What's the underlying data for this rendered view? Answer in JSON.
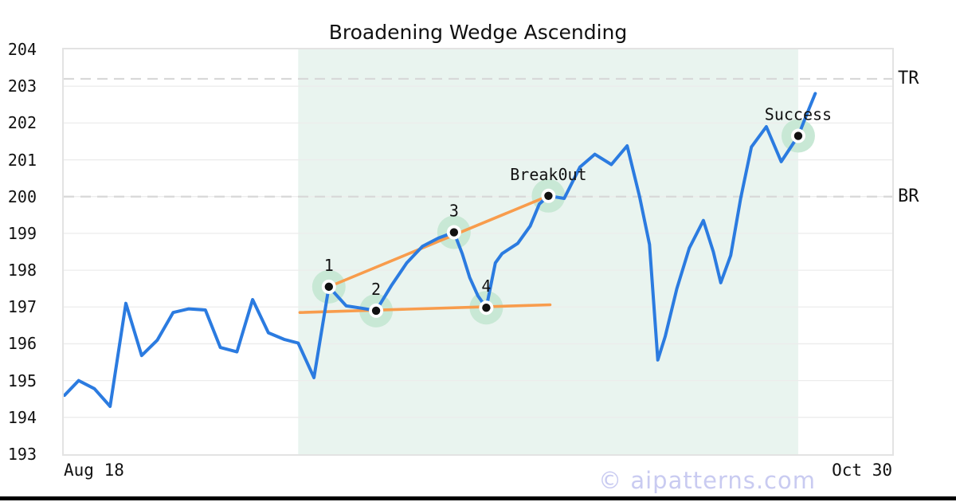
{
  "watermark": "© aipatterns.com",
  "colors": {
    "price_line": "#2b7be0",
    "trendline": "#f89c4c",
    "marker_halo": "#c8e8d5",
    "marker_dot": "#111111",
    "marker_ring": "#ffffff",
    "pattern_shade": "#e9f4ef",
    "grid": "#ececec",
    "dashed_level": "#d8d8d8",
    "plot_border": "#e3e3e3",
    "text": "#111111",
    "watermark_color": "#c9cbf1"
  },
  "chart_data": {
    "type": "line",
    "title": "Broadening Wedge Ascending",
    "xlabel": "",
    "ylabel": "",
    "ylim": [
      193,
      204
    ],
    "grid": true,
    "legend": "none",
    "x_tick_labels": [
      "Aug 18",
      "Oct 30"
    ],
    "y_ticks": [
      193,
      194,
      195,
      196,
      197,
      198,
      199,
      200,
      201,
      202,
      203,
      204
    ],
    "levels": [
      {
        "label": "TR",
        "value": 203.2
      },
      {
        "label": "BR",
        "value": 200.0
      }
    ],
    "shaded_region": {
      "x_start": 28.3,
      "x_end": 88.65
    },
    "series": [
      {
        "name": "price",
        "points": [
          [
            0.1,
            194.6
          ],
          [
            1.8,
            195.0
          ],
          [
            3.7,
            194.78
          ],
          [
            5.6,
            194.3
          ],
          [
            7.5,
            197.1
          ],
          [
            9.4,
            195.68
          ],
          [
            11.3,
            196.1
          ],
          [
            13.2,
            196.85
          ],
          [
            15.1,
            196.95
          ],
          [
            17.1,
            196.92
          ],
          [
            18.9,
            195.9
          ],
          [
            20.9,
            195.78
          ],
          [
            22.8,
            197.2
          ],
          [
            24.7,
            196.3
          ],
          [
            26.6,
            196.12
          ],
          [
            28.3,
            196.02
          ],
          [
            30.2,
            195.08
          ],
          [
            32.0,
            197.55
          ],
          [
            34.1,
            197.03
          ],
          [
            35.9,
            196.97
          ],
          [
            37.7,
            196.9
          ],
          [
            39.6,
            197.6
          ],
          [
            41.4,
            198.2
          ],
          [
            43.3,
            198.65
          ],
          [
            45.2,
            198.87
          ],
          [
            47.1,
            199.03
          ],
          [
            48.1,
            198.45
          ],
          [
            49.0,
            197.8
          ],
          [
            50.0,
            197.3
          ],
          [
            51.0,
            196.98
          ],
          [
            52.1,
            198.2
          ],
          [
            52.9,
            198.45
          ],
          [
            54.8,
            198.73
          ],
          [
            56.3,
            199.2
          ],
          [
            57.4,
            199.8
          ],
          [
            58.5,
            200.02
          ],
          [
            60.4,
            199.95
          ],
          [
            62.3,
            200.8
          ],
          [
            64.1,
            201.15
          ],
          [
            66.1,
            200.87
          ],
          [
            68.0,
            201.38
          ],
          [
            69.5,
            200.0
          ],
          [
            70.7,
            198.7
          ],
          [
            71.7,
            195.56
          ],
          [
            72.6,
            196.2
          ],
          [
            74.0,
            197.5
          ],
          [
            75.5,
            198.6
          ],
          [
            77.2,
            199.35
          ],
          [
            78.4,
            198.5
          ],
          [
            79.3,
            197.66
          ],
          [
            80.5,
            198.4
          ],
          [
            81.7,
            199.95
          ],
          [
            83.0,
            201.35
          ],
          [
            84.8,
            201.9
          ],
          [
            86.6,
            200.95
          ],
          [
            88.65,
            201.65
          ],
          [
            89.7,
            202.25
          ],
          [
            90.7,
            202.8
          ]
        ]
      }
    ],
    "trendlines": [
      {
        "name": "upper-broadening-line",
        "from": [
          32.0,
          197.55
        ],
        "to": [
          58.5,
          200.02
        ]
      },
      {
        "name": "lower-broadening-line",
        "from": [
          28.5,
          196.85
        ],
        "to": [
          58.7,
          197.06
        ]
      }
    ],
    "markers": [
      {
        "label": "1",
        "x": 32.0,
        "value": 197.55
      },
      {
        "label": "2",
        "x": 37.7,
        "value": 196.9
      },
      {
        "label": "3",
        "x": 47.1,
        "value": 199.03
      },
      {
        "label": "4",
        "x": 51.0,
        "value": 196.98
      },
      {
        "label": "Break0ut",
        "x": 58.5,
        "value": 200.02
      },
      {
        "label": "Success",
        "x": 88.65,
        "value": 201.65
      }
    ]
  }
}
